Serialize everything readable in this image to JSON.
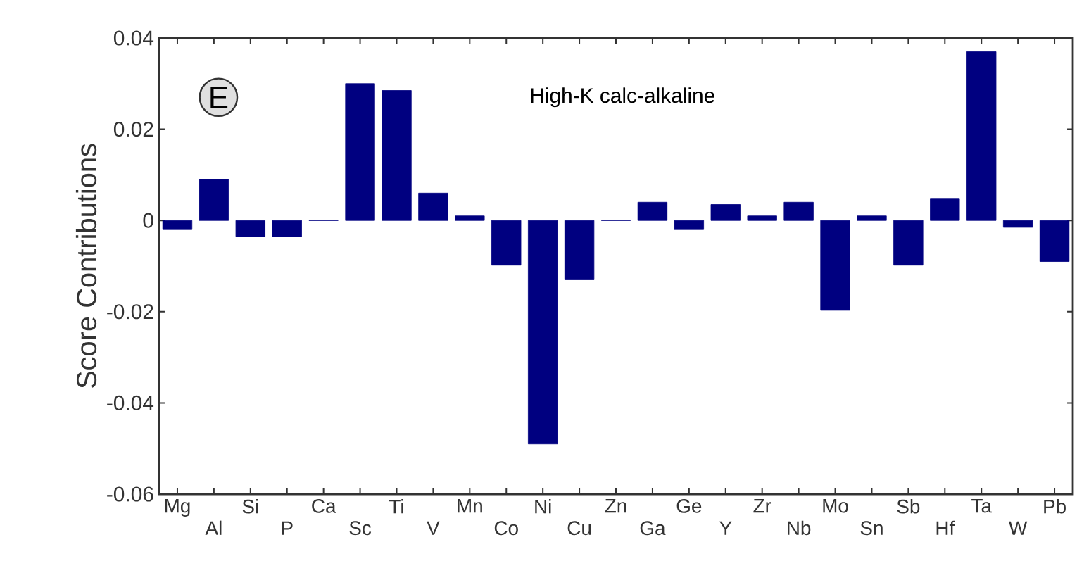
{
  "chart_data": {
    "type": "bar",
    "ylabel": "Score Contributions",
    "categories": [
      "Mg",
      "Al",
      "Si",
      "P",
      "Ca",
      "Sc",
      "Ti",
      "V",
      "Mn",
      "Co",
      "Ni",
      "Cu",
      "Zn",
      "Ga",
      "Ge",
      "Y",
      "Zr",
      "Nb",
      "Mo",
      "Sn",
      "Sb",
      "Hf",
      "Ta",
      "W",
      "Pb"
    ],
    "values": [
      -0.002,
      0.009,
      -0.0035,
      -0.0035,
      0,
      0.03,
      0.0285,
      0.006,
      0.001,
      -0.0098,
      -0.049,
      -0.013,
      0,
      0.004,
      -0.002,
      0.0035,
      0.001,
      0.004,
      -0.0197,
      0.001,
      -0.0098,
      0.0047,
      0.037,
      -0.0015,
      -0.009
    ],
    "color": "#000080",
    "ylim": [
      -0.06,
      0.04
    ],
    "yticks": [
      -0.06,
      -0.04,
      -0.02,
      0,
      0.02,
      0.04
    ],
    "annotations": [
      "E",
      "High-K calc-alkaline"
    ]
  }
}
